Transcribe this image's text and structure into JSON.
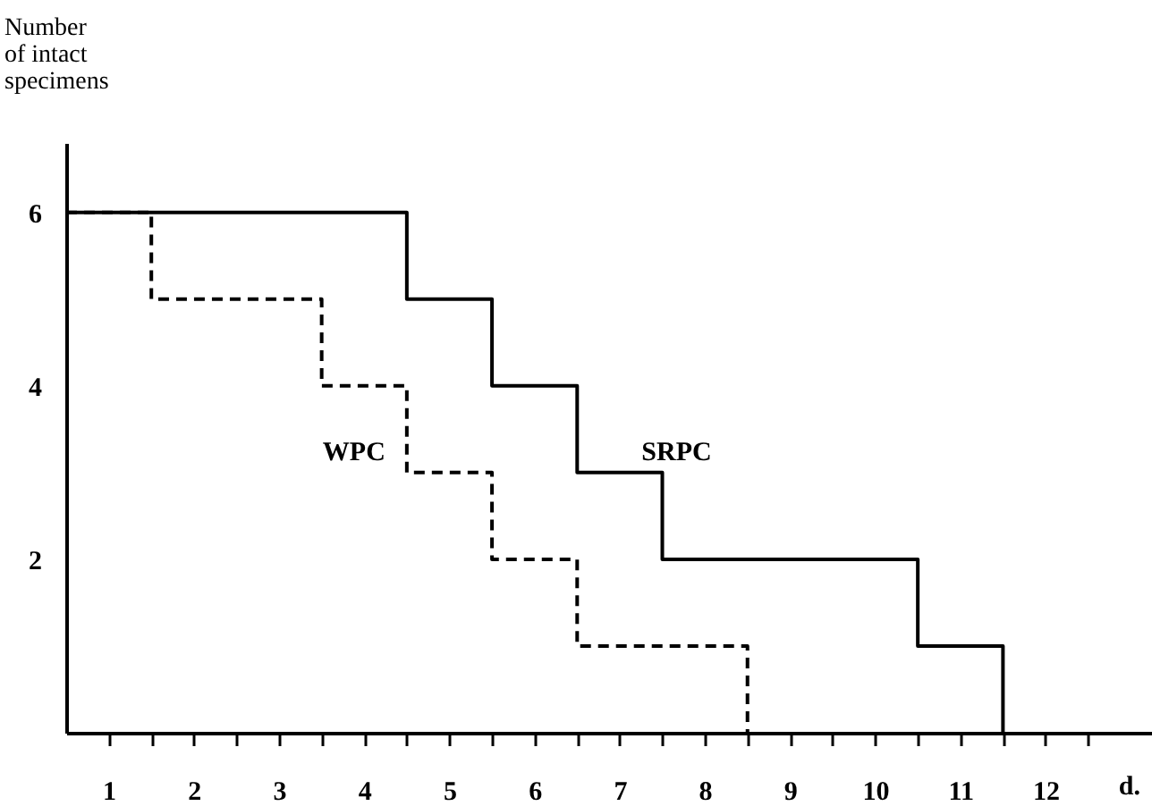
{
  "chart_data": {
    "type": "step",
    "ylabel": "Number\nof intact\nspecimens",
    "xlabel": "d.",
    "series": [
      {
        "name": "SRPC",
        "color": "#000000",
        "line_style": "solid",
        "x": [
          0.5,
          4.5,
          5.5,
          6.5,
          7.5,
          10.5,
          11.5
        ],
        "values": [
          6,
          5,
          4,
          3,
          2,
          1,
          0
        ]
      },
      {
        "name": "WPC",
        "color": "#000000",
        "line_style": "dashed",
        "x": [
          0.5,
          1.5,
          3.5,
          4.5,
          5.5,
          6.5,
          8.5
        ],
        "values": [
          6,
          5,
          4,
          3,
          2,
          1,
          0
        ]
      }
    ],
    "xlim": [
      0.5,
      13.25
    ],
    "xticks": [
      1,
      {
        "value": 1.5,
        "label": null
      },
      2,
      {
        "value": 2.5,
        "label": null
      },
      3,
      {
        "value": 3.5,
        "label": null
      },
      4,
      {
        "value": 4.5,
        "label": null
      },
      5,
      {
        "value": 5.5,
        "label": null
      },
      6,
      {
        "value": 6.5,
        "label": null
      },
      7,
      {
        "value": 7.5,
        "label": null
      },
      8,
      {
        "value": 8.5,
        "label": null
      },
      9,
      {
        "value": 9.5,
        "label": null
      },
      10,
      {
        "value": 10.5,
        "label": null
      },
      11,
      {
        "value": 11.5,
        "label": null
      },
      12,
      {
        "value": 12.5,
        "label": null
      }
    ],
    "ylim": [
      0,
      6.8
    ],
    "yticks": [
      2,
      4,
      6
    ],
    "grid": false,
    "legend": false,
    "marker": "none"
  }
}
